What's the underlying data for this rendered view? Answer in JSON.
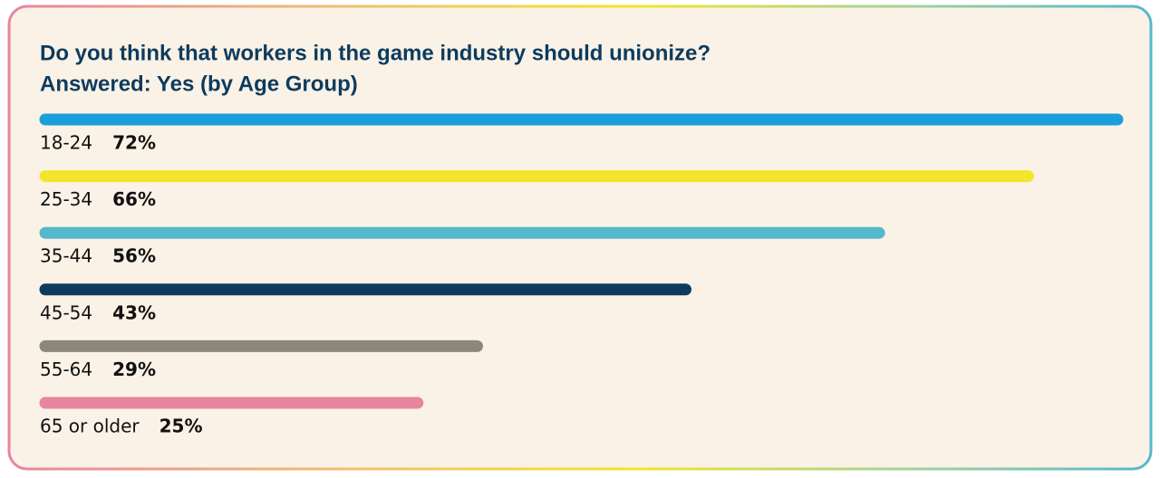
{
  "chart_data": {
    "type": "bar",
    "orientation": "horizontal",
    "title": "Do you think that workers in the game industry should unionize?",
    "subtitle": "Answered: Yes (by Age Group)",
    "categories": [
      "18-24",
      "25-34",
      "35-44",
      "45-54",
      "55-64",
      "65 or older"
    ],
    "values": [
      72,
      66,
      56,
      43,
      29,
      25
    ],
    "value_labels": [
      "72%",
      "66%",
      "56%",
      "43%",
      "29%",
      "25%"
    ],
    "colors": [
      "#1a9fdb",
      "#f2e52b",
      "#56b8cc",
      "#0d3b5e",
      "#8a877c",
      "#e8849f"
    ]
  }
}
